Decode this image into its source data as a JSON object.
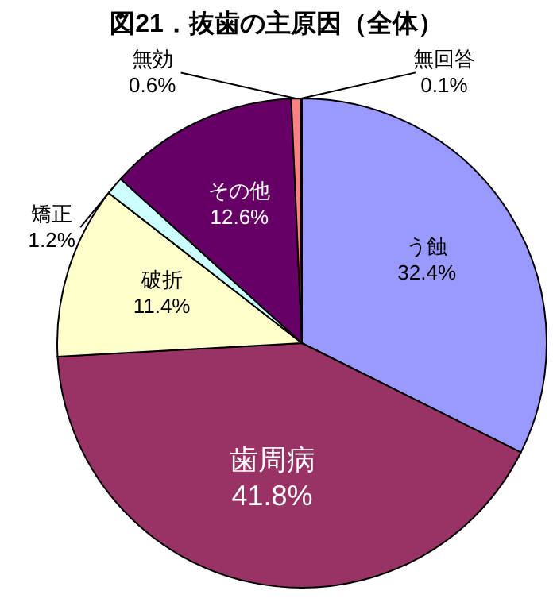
{
  "chart_data": {
    "type": "pie",
    "title": "図21．抜歯の主原因（全体）",
    "categories": [
      "う蝕",
      "歯周病",
      "破折",
      "矯正",
      "その他",
      "無効",
      "無回答"
    ],
    "values": [
      32.4,
      41.8,
      11.4,
      1.2,
      12.6,
      0.6,
      0.1
    ],
    "value_labels": [
      "32.4%",
      "41.8%",
      "11.4%",
      "1.2%",
      "12.6%",
      "0.6%",
      "0.1%"
    ],
    "colors": [
      "#9999ff",
      "#993366",
      "#ffffcc",
      "#ccffff",
      "#660066",
      "#ff8080",
      "#0066cc"
    ]
  }
}
